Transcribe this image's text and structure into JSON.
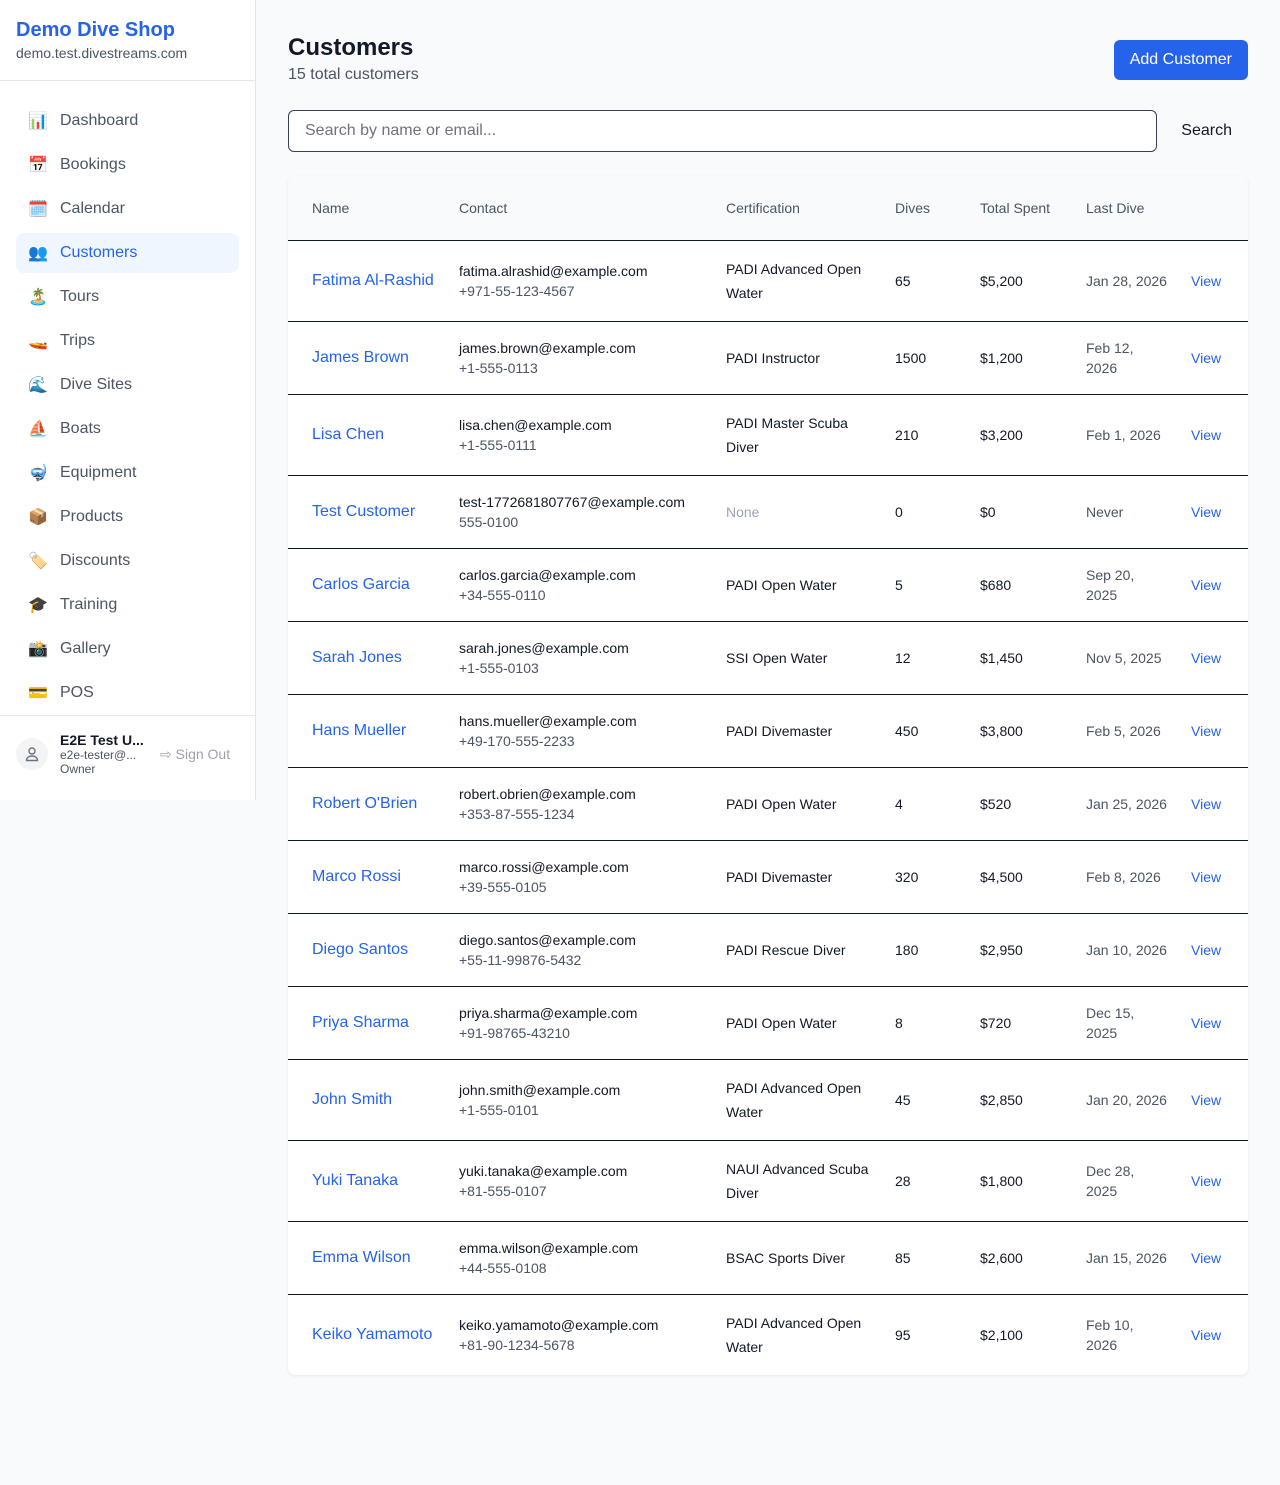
{
  "sidebar": {
    "brand": "Demo Dive Shop",
    "domain": "demo.test.divestreams.com",
    "items": [
      {
        "label": "Dashboard",
        "icon": "📊",
        "icon_name": "bar-chart-icon"
      },
      {
        "label": "Bookings",
        "icon": "📅",
        "icon_name": "calendar-date-icon"
      },
      {
        "label": "Calendar",
        "icon": "🗓️",
        "icon_name": "spiral-calendar-icon"
      },
      {
        "label": "Customers",
        "icon": "👥",
        "icon_name": "people-icon",
        "active": true
      },
      {
        "label": "Tours",
        "icon": "🏝️",
        "icon_name": "island-icon"
      },
      {
        "label": "Trips",
        "icon": "🚤",
        "icon_name": "speedboat-icon"
      },
      {
        "label": "Dive Sites",
        "icon": "🌊",
        "icon_name": "wave-icon"
      },
      {
        "label": "Boats",
        "icon": "⛵",
        "icon_name": "sailboat-icon"
      },
      {
        "label": "Equipment",
        "icon": "🤿",
        "icon_name": "diving-mask-icon"
      },
      {
        "label": "Products",
        "icon": "📦",
        "icon_name": "package-icon"
      },
      {
        "label": "Discounts",
        "icon": "🏷️",
        "icon_name": "tag-icon"
      },
      {
        "label": "Training",
        "icon": "🎓",
        "icon_name": "graduation-cap-icon"
      },
      {
        "label": "Gallery",
        "icon": "📸",
        "icon_name": "camera-icon"
      },
      {
        "label": "POS",
        "icon": "💳",
        "icon_name": "credit-card-icon"
      }
    ],
    "user": {
      "name": "E2E Test U...",
      "email": "e2e-tester@...",
      "role": "Owner",
      "sign_out": "Sign Out"
    }
  },
  "header": {
    "title": "Customers",
    "subtitle": "15 total customers",
    "add_label": "Add Customer"
  },
  "search": {
    "placeholder": "Search by name or email...",
    "value": "",
    "button": "Search"
  },
  "table": {
    "columns": [
      "Name",
      "Contact",
      "Certification",
      "Dives",
      "Total Spent",
      "Last Dive",
      ""
    ],
    "view_label": "View",
    "rows": [
      {
        "name": "Fatima Al-Rashid",
        "email": "fatima.alrashid@example.com",
        "phone": "+971-55-123-4567",
        "cert": "PADI Advanced Open Water",
        "dives": "65",
        "spent": "$5,200",
        "last": "Jan 28, 2026"
      },
      {
        "name": "James Brown",
        "email": "james.brown@example.com",
        "phone": "+1-555-0113",
        "cert": "PADI Instructor",
        "dives": "1500",
        "spent": "$1,200",
        "last": "Feb 12, 2026"
      },
      {
        "name": "Lisa Chen",
        "email": "lisa.chen@example.com",
        "phone": "+1-555-0111",
        "cert": "PADI Master Scuba Diver",
        "dives": "210",
        "spent": "$3,200",
        "last": "Feb 1, 2026"
      },
      {
        "name": "Test Customer",
        "email": "test-1772681807767@example.com",
        "phone": "555-0100",
        "cert": "None",
        "dives": "0",
        "spent": "$0",
        "last": "Never"
      },
      {
        "name": "Carlos Garcia",
        "email": "carlos.garcia@example.com",
        "phone": "+34-555-0110",
        "cert": "PADI Open Water",
        "dives": "5",
        "spent": "$680",
        "last": "Sep 20, 2025"
      },
      {
        "name": "Sarah Jones",
        "email": "sarah.jones@example.com",
        "phone": "+1-555-0103",
        "cert": "SSI Open Water",
        "dives": "12",
        "spent": "$1,450",
        "last": "Nov 5, 2025"
      },
      {
        "name": "Hans Mueller",
        "email": "hans.mueller@example.com",
        "phone": "+49-170-555-2233",
        "cert": "PADI Divemaster",
        "dives": "450",
        "spent": "$3,800",
        "last": "Feb 5, 2026"
      },
      {
        "name": "Robert O'Brien",
        "email": "robert.obrien@example.com",
        "phone": "+353-87-555-1234",
        "cert": "PADI Open Water",
        "dives": "4",
        "spent": "$520",
        "last": "Jan 25, 2026"
      },
      {
        "name": "Marco Rossi",
        "email": "marco.rossi@example.com",
        "phone": "+39-555-0105",
        "cert": "PADI Divemaster",
        "dives": "320",
        "spent": "$4,500",
        "last": "Feb 8, 2026"
      },
      {
        "name": "Diego Santos",
        "email": "diego.santos@example.com",
        "phone": "+55-11-99876-5432",
        "cert": "PADI Rescue Diver",
        "dives": "180",
        "spent": "$2,950",
        "last": "Jan 10, 2026"
      },
      {
        "name": "Priya Sharma",
        "email": "priya.sharma@example.com",
        "phone": "+91-98765-43210",
        "cert": "PADI Open Water",
        "dives": "8",
        "spent": "$720",
        "last": "Dec 15, 2025"
      },
      {
        "name": "John Smith",
        "email": "john.smith@example.com",
        "phone": "+1-555-0101",
        "cert": "PADI Advanced Open Water",
        "dives": "45",
        "spent": "$2,850",
        "last": "Jan 20, 2026"
      },
      {
        "name": "Yuki Tanaka",
        "email": "yuki.tanaka@example.com",
        "phone": "+81-555-0107",
        "cert": "NAUI Advanced Scuba Diver",
        "dives": "28",
        "spent": "$1,800",
        "last": "Dec 28, 2025"
      },
      {
        "name": "Emma Wilson",
        "email": "emma.wilson@example.com",
        "phone": "+44-555-0108",
        "cert": "BSAC Sports Diver",
        "dives": "85",
        "spent": "$2,600",
        "last": "Jan 15, 2026"
      },
      {
        "name": "Keiko Yamamoto",
        "email": "keiko.yamamoto@example.com",
        "phone": "+81-90-1234-5678",
        "cert": "PADI Advanced Open Water",
        "dives": "95",
        "spent": "$2,100",
        "last": "Feb 10, 2026"
      }
    ]
  }
}
